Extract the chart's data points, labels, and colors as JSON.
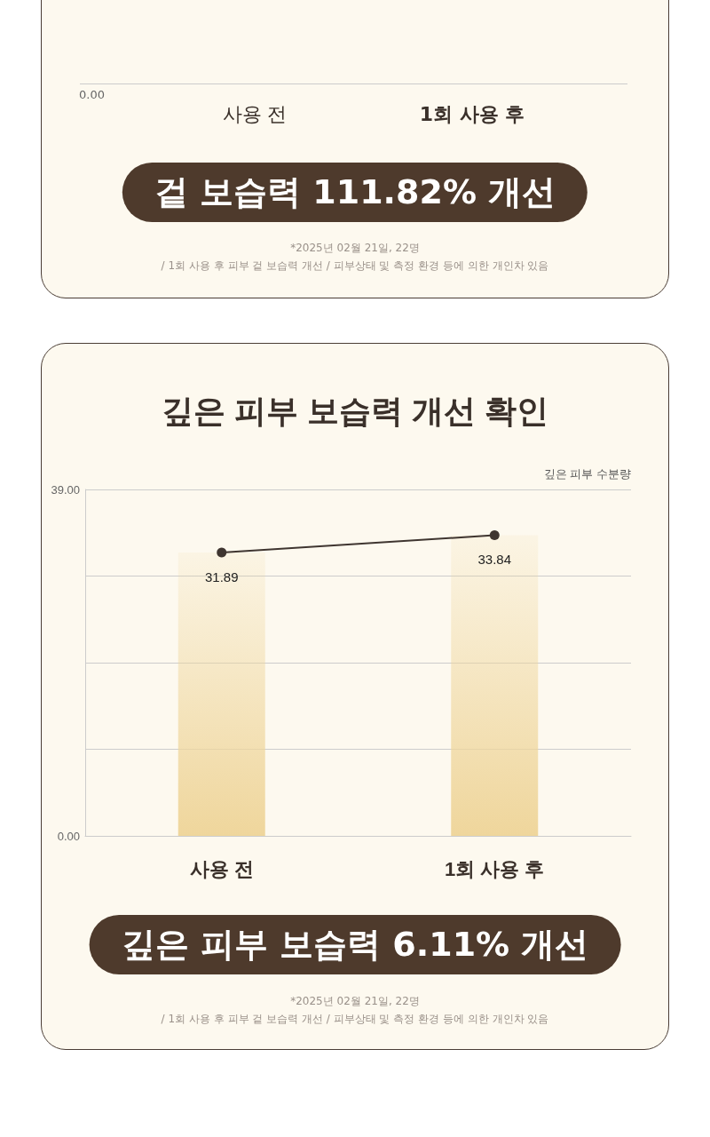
{
  "chart_data": [
    {
      "type": "other",
      "categories": [
        "사용 전",
        "1회 사용 후"
      ],
      "annotations": [
        "0.00",
        "겉 보습력  111.82% 개선",
        "*2025년 02월 21일, 22명",
        "/ 1회 사용 후 피부 겉 보습력 개선 / 피부상태 및 측정 환경 등에 의한 개인차 있음"
      ]
    },
    {
      "type": "bar",
      "title": "깊은 피부 보습력 개선 확인",
      "ylabel": "깊은 피부 수분량",
      "categories": [
        "사용 전",
        "1회 사용 후"
      ],
      "series": [
        {
          "type": "bar",
          "color": "#efd69c",
          "values": [
            31.89,
            33.84
          ]
        },
        {
          "type": "line",
          "color": "#3f3530",
          "values": [
            31.89,
            33.84
          ],
          "value_labels": [
            "31.89",
            "33.84"
          ]
        }
      ],
      "marker": "circle",
      "grid": "y",
      "ylim": [
        0,
        39
      ],
      "yticks": [
        {
          "value": 0,
          "label": "0.00"
        },
        {
          "value": 9.75,
          "label": null
        },
        {
          "value": 19.5,
          "label": null
        },
        {
          "value": 29.25,
          "label": null
        },
        {
          "value": 39,
          "label": "39.00"
        }
      ],
      "annotations": [
        "깊은 피부 보습력  6.11% 개선",
        "*2025년 02월 21일, 22명",
        "/ 1회 사용 후 피부 겉 보습력 개선 / 피부상태 및 측정 환경 등에 의한 개인차 있음"
      ]
    }
  ]
}
